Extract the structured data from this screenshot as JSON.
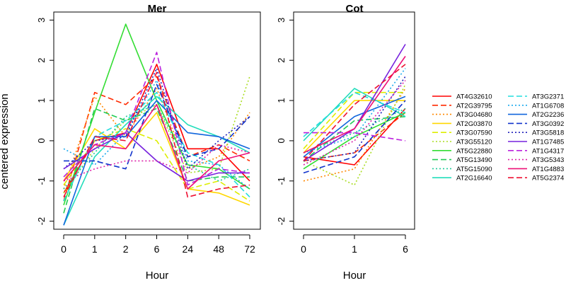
{
  "figure": {
    "ylabel": "centered expression",
    "xlabel": "Hour"
  },
  "chart_data": [
    {
      "type": "line",
      "title": "Mer",
      "xlabel": "Hour",
      "ylabel": "centered expression",
      "x": [
        "0",
        "1",
        "2",
        "6",
        "24",
        "48",
        "72"
      ],
      "ylim": [
        -2.2,
        3.2
      ],
      "yticks": [
        -2,
        -1,
        0,
        1,
        2,
        3
      ],
      "grid": false,
      "series": [
        {
          "name": "AT4G32610",
          "color": "#FF0000",
          "dash": "solid",
          "values": [
            -1.3,
            0.0,
            0.2,
            1.9,
            -0.2,
            -0.2,
            -1.0
          ]
        },
        {
          "name": "AT2G39795",
          "color": "#FF2A00",
          "dash": "dashed",
          "values": [
            -1.5,
            1.2,
            0.9,
            1.6,
            -0.4,
            -0.1,
            -0.5
          ]
        },
        {
          "name": "AT3G04680",
          "color": "#FF8800",
          "dash": "dotted",
          "values": [
            -1.2,
            1.1,
            0.1,
            1.3,
            -0.7,
            -0.4,
            0.7
          ]
        },
        {
          "name": "AT2G03870",
          "color": "#FFD700",
          "dash": "solid",
          "values": [
            -1.0,
            0.3,
            -0.2,
            0.7,
            -1.2,
            -1.3,
            -1.6
          ]
        },
        {
          "name": "AT3G07590",
          "color": "#DDEE00",
          "dash": "dashed",
          "values": [
            -1.1,
            0.0,
            0.3,
            0.0,
            -1.2,
            -1.0,
            -1.5
          ]
        },
        {
          "name": "AT3G55120",
          "color": "#AADD22",
          "dash": "dotted",
          "values": [
            -1.3,
            -0.2,
            0.5,
            0.9,
            -0.8,
            -0.7,
            1.6
          ]
        },
        {
          "name": "AT5G22880",
          "color": "#33DD33",
          "dash": "solid",
          "values": [
            -1.6,
            0.7,
            2.9,
            1.0,
            -0.6,
            -0.7,
            -1.2
          ]
        },
        {
          "name": "AT5G13490",
          "color": "#22CC55",
          "dash": "dashed",
          "values": [
            -1.8,
            0.8,
            0.5,
            0.8,
            -1.0,
            -0.9,
            -0.9
          ]
        },
        {
          "name": "AT5G15090",
          "color": "#22CC99",
          "dash": "dotted",
          "values": [
            -1.2,
            -0.3,
            0.6,
            0.9,
            -0.6,
            -1.0,
            -0.7
          ]
        },
        {
          "name": "AT2G16640",
          "color": "#22DDBB",
          "dash": "solid",
          "values": [
            -2.1,
            -0.4,
            0.4,
            1.1,
            0.4,
            0.1,
            -0.3
          ]
        },
        {
          "name": "AT3G2371",
          "color": "#22DDDD",
          "dash": "dashed",
          "values": [
            -1.5,
            0.1,
            0.5,
            1.2,
            -0.3,
            -0.6,
            -1.4
          ]
        },
        {
          "name": "AT1G6708",
          "color": "#1AAAEE",
          "dash": "dotted",
          "values": [
            -0.2,
            -0.6,
            0.2,
            1.5,
            -0.5,
            -0.6,
            -1.2
          ]
        },
        {
          "name": "AT2G2236",
          "color": "#1166DD",
          "dash": "solid",
          "values": [
            -2.1,
            0.1,
            0.1,
            1.0,
            0.2,
            0.1,
            -0.2
          ]
        },
        {
          "name": "AT3G0392",
          "color": "#1133CC",
          "dash": "dashed",
          "values": [
            -0.5,
            -0.5,
            -0.7,
            1.4,
            -0.4,
            -0.2,
            0.6
          ]
        },
        {
          "name": "AT3G5818",
          "color": "#2222BB",
          "dash": "dotted",
          "values": [
            -0.7,
            0.0,
            0.1,
            1.8,
            -0.7,
            0.0,
            0.6
          ]
        },
        {
          "name": "AT1G7485",
          "color": "#7722DD",
          "dash": "solid",
          "values": [
            -0.7,
            -0.2,
            0.2,
            -0.5,
            -1.0,
            -0.8,
            -0.8
          ]
        },
        {
          "name": "AT1G4317",
          "color": "#BB22DD",
          "dash": "dashed",
          "values": [
            -0.9,
            -0.1,
            0.2,
            2.2,
            -1.1,
            -0.7,
            -0.8
          ]
        },
        {
          "name": "AT3G5343",
          "color": "#DD22AA",
          "dash": "dotted",
          "values": [
            -1.0,
            -0.7,
            -0.5,
            -0.5,
            -0.8,
            -0.1,
            -0.3
          ]
        },
        {
          "name": "AT1G4883",
          "color": "#EE1177",
          "dash": "solid",
          "values": [
            -1.0,
            -0.1,
            -0.2,
            0.9,
            -1.2,
            -0.5,
            -0.3
          ]
        },
        {
          "name": "AT5G2374",
          "color": "#EE1133",
          "dash": "dashed",
          "values": [
            -1.4,
            0.1,
            0.0,
            1.7,
            -1.4,
            -1.2,
            -1.1
          ]
        }
      ]
    },
    {
      "type": "line",
      "title": "Cot",
      "xlabel": "Hour",
      "ylabel": "",
      "x": [
        "0",
        "1",
        "6"
      ],
      "ylim": [
        -2.2,
        3.2
      ],
      "yticks": [
        -2,
        -1,
        0,
        1,
        2,
        3
      ],
      "grid": false,
      "series": [
        {
          "name": "AT4G32610",
          "color": "#FF0000",
          "dash": "solid",
          "values": [
            -0.4,
            -0.6,
            0.8
          ]
        },
        {
          "name": "AT2G39795",
          "color": "#FF2A00",
          "dash": "dashed",
          "values": [
            -0.5,
            -0.3,
            0.7
          ]
        },
        {
          "name": "AT3G04680",
          "color": "#FF8800",
          "dash": "dotted",
          "values": [
            -1.0,
            -0.7,
            1.3
          ]
        },
        {
          "name": "AT2G03870",
          "color": "#FFD700",
          "dash": "solid",
          "values": [
            -0.3,
            1.0,
            1.0
          ]
        },
        {
          "name": "AT3G07590",
          "color": "#DDEE00",
          "dash": "dashed",
          "values": [
            -0.2,
            1.2,
            1.2
          ]
        },
        {
          "name": "AT3G55120",
          "color": "#AADD22",
          "dash": "dotted",
          "values": [
            -0.5,
            -1.1,
            1.4
          ]
        },
        {
          "name": "AT5G22880",
          "color": "#33DD33",
          "dash": "solid",
          "values": [
            -0.7,
            0.1,
            0.7
          ]
        },
        {
          "name": "AT5G13490",
          "color": "#22CC55",
          "dash": "dashed",
          "values": [
            -0.5,
            0.5,
            0.6
          ]
        },
        {
          "name": "AT5G15090",
          "color": "#22CC99",
          "dash": "dotted",
          "values": [
            -0.3,
            0.2,
            0.8
          ]
        },
        {
          "name": "AT2G16640",
          "color": "#22DDBB",
          "dash": "solid",
          "values": [
            0.0,
            1.3,
            0.6
          ]
        },
        {
          "name": "AT3G2371",
          "color": "#22DDDD",
          "dash": "dashed",
          "values": [
            0.1,
            1.2,
            0.7
          ]
        },
        {
          "name": "AT1G6708",
          "color": "#1AAAEE",
          "dash": "dotted",
          "values": [
            -0.3,
            0.1,
            1.8
          ]
        },
        {
          "name": "AT2G2236",
          "color": "#1166DD",
          "dash": "solid",
          "values": [
            -0.4,
            0.6,
            1.1
          ]
        },
        {
          "name": "AT3G0392",
          "color": "#1133CC",
          "dash": "dashed",
          "values": [
            -0.8,
            -0.4,
            1.0
          ]
        },
        {
          "name": "AT3G5818",
          "color": "#2222BB",
          "dash": "dotted",
          "values": [
            -0.5,
            -0.3,
            1.6
          ]
        },
        {
          "name": "AT1G7485",
          "color": "#7722DD",
          "dash": "solid",
          "values": [
            -0.5,
            0.3,
            2.4
          ]
        },
        {
          "name": "AT1G4317",
          "color": "#BB22DD",
          "dash": "dashed",
          "values": [
            0.2,
            0.2,
            0.0
          ]
        },
        {
          "name": "AT3G5343",
          "color": "#DD22AA",
          "dash": "dotted",
          "values": [
            -0.6,
            0.0,
            1.5
          ]
        },
        {
          "name": "AT1G4883",
          "color": "#EE1177",
          "dash": "solid",
          "values": [
            -0.3,
            0.3,
            2.1
          ]
        },
        {
          "name": "AT5G2374",
          "color": "#EE1133",
          "dash": "dashed",
          "values": [
            -0.5,
            0.9,
            1.9
          ]
        }
      ]
    }
  ]
}
